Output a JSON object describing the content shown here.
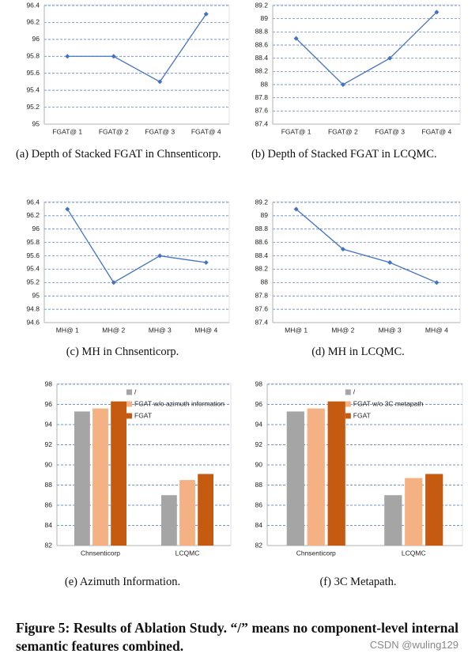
{
  "chart_data": [
    {
      "type": "line",
      "caption": "(a) Depth of Stacked FGAT in Chnsenticorp.",
      "categories": [
        "FGAT@ 1",
        "FGAT@ 2",
        "FGAT@ 3",
        "FGAT@ 4"
      ],
      "values": [
        95.8,
        95.8,
        95.5,
        96.3
      ],
      "color": "#4472c4",
      "ylim": [
        95,
        96.4
      ],
      "yticks": [
        95,
        95.2,
        95.4,
        95.6,
        95.8,
        96,
        96.2,
        96.4
      ],
      "grid": true
    },
    {
      "type": "line",
      "caption": "(b) Depth of Stacked FGAT in LCQMC.",
      "categories": [
        "FGAT@ 1",
        "FGAT@ 2",
        "FGAT@ 3",
        "FGAT@ 4"
      ],
      "values": [
        88.7,
        88.0,
        88.4,
        89.1
      ],
      "color": "#4472c4",
      "ylim": [
        87.4,
        89.2
      ],
      "yticks": [
        87.4,
        87.6,
        87.8,
        88,
        88.2,
        88.4,
        88.6,
        88.8,
        89,
        89.2
      ],
      "grid": true
    },
    {
      "type": "line",
      "caption": "(c) MH in Chnsenticorp.",
      "categories": [
        "MH@ 1",
        "MH@ 2",
        "MH@ 3",
        "MH@ 4"
      ],
      "values": [
        96.3,
        95.2,
        95.6,
        95.5
      ],
      "color": "#4472c4",
      "ylim": [
        94.6,
        96.4
      ],
      "yticks": [
        94.6,
        94.8,
        95,
        95.2,
        95.4,
        95.6,
        95.8,
        96,
        96.2,
        96.4
      ],
      "grid": true
    },
    {
      "type": "line",
      "caption": "(d) MH in LCQMC.",
      "categories": [
        "MH@ 1",
        "MH@ 2",
        "MH@ 3",
        "MH@ 4"
      ],
      "values": [
        89.1,
        88.5,
        88.3,
        88.0
      ],
      "color": "#4472c4",
      "ylim": [
        87.4,
        89.2
      ],
      "yticks": [
        87.4,
        87.6,
        87.8,
        88,
        88.2,
        88.4,
        88.6,
        88.8,
        89,
        89.2
      ],
      "grid": true
    },
    {
      "type": "bar",
      "caption": "(e) Azimuth Information.",
      "categories": [
        "Chnsenticorp",
        "LCQMC"
      ],
      "series": [
        {
          "name": "/",
          "color": "#a5a5a5",
          "values": [
            95.3,
            87.0
          ]
        },
        {
          "name": "FGAT w/o azimuth information",
          "color": "#f4b183",
          "values": [
            95.6,
            88.5
          ]
        },
        {
          "name": "FGAT",
          "color": "#c55a11",
          "values": [
            96.3,
            89.1
          ]
        }
      ],
      "ylim": [
        82,
        98
      ],
      "yticks": [
        82,
        84,
        86,
        88,
        90,
        92,
        94,
        96,
        98
      ],
      "grid": true,
      "legend": "upper right"
    },
    {
      "type": "bar",
      "caption": "(f) 3C Metapath.",
      "categories": [
        "Chnsenticorp",
        "LCQMC"
      ],
      "series": [
        {
          "name": "/",
          "color": "#a5a5a5",
          "values": [
            95.3,
            87.0
          ]
        },
        {
          "name": "FGAT w/o 3C metapath",
          "color": "#f4b183",
          "values": [
            95.6,
            88.7
          ]
        },
        {
          "name": "FGAT",
          "color": "#c55a11",
          "values": [
            96.3,
            89.1
          ]
        }
      ],
      "ylim": [
        82,
        98
      ],
      "yticks": [
        82,
        84,
        86,
        88,
        90,
        92,
        94,
        96,
        98
      ],
      "grid": true,
      "legend": "upper right"
    }
  ],
  "figure_caption": "Figure 5: Results of Ablation Study. “/” means no component-level internal semantic features combined.",
  "watermark": "CSDN @wuling129"
}
